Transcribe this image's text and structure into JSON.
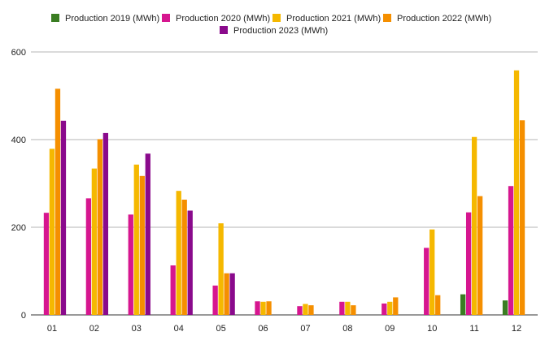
{
  "chart_data": {
    "type": "bar",
    "categories": [
      "01",
      "02",
      "03",
      "04",
      "05",
      "06",
      "07",
      "08",
      "09",
      "10",
      "11",
      "12"
    ],
    "series": [
      {
        "name": "Production 2019 (MWh)",
        "color": "#3a7d22",
        "values": [
          0,
          0,
          0,
          0,
          0,
          0,
          0,
          0,
          0,
          0,
          47,
          33
        ]
      },
      {
        "name": "Production 2020 (MWh)",
        "color": "#d6168f",
        "values": [
          233,
          266,
          229,
          113,
          67,
          31,
          20,
          30,
          26,
          153,
          234,
          294
        ]
      },
      {
        "name": "Production 2021 (MWh)",
        "color": "#f5b800",
        "values": [
          379,
          334,
          343,
          283,
          209,
          30,
          25,
          30,
          30,
          195,
          406,
          558
        ]
      },
      {
        "name": "Production 2022 (MWh)",
        "color": "#f58f00",
        "values": [
          516,
          401,
          317,
          263,
          95,
          31,
          22,
          22,
          40,
          45,
          271,
          444
        ]
      },
      {
        "name": "Production 2023 (MWh)",
        "color": "#8a0a8c",
        "values": [
          443,
          415,
          368,
          238,
          95,
          0,
          0,
          0,
          0,
          0,
          0,
          0
        ]
      }
    ],
    "y_ticks": [
      "0",
      "200",
      "400",
      "600"
    ],
    "ylim": [
      0,
      600
    ],
    "grid": true,
    "legend_position": "top"
  }
}
